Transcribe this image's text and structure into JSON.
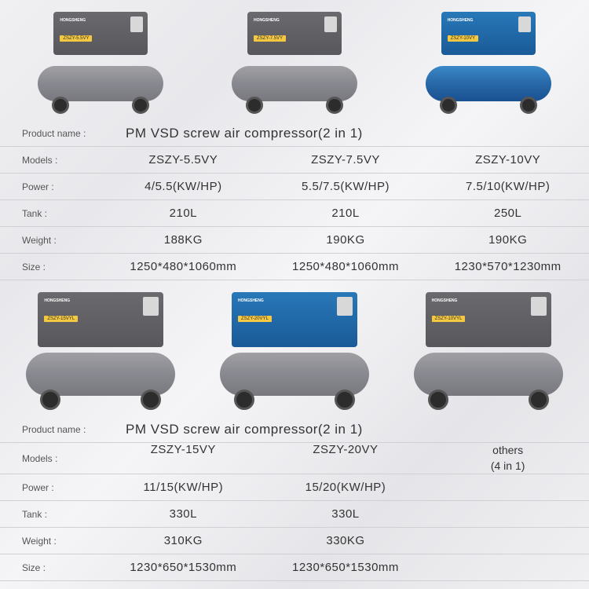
{
  "section1": {
    "product_name_label": "Product name :",
    "product_name": "PM VSD screw air compressor(2 in 1)",
    "labels": {
      "models": "Models :",
      "power": "Power :",
      "tank": "Tank :",
      "weight": "Weight :",
      "size": "Size :"
    },
    "products": [
      {
        "model": "ZSZY-5.5VY",
        "power": "4/5.5(KW/HP)",
        "tank": "210L",
        "weight": "188KG",
        "size": "1250*480*1060mm",
        "color": "gray",
        "badge": "ZSZY-5.5VY"
      },
      {
        "model": "ZSZY-7.5VY",
        "power": "5.5/7.5(KW/HP)",
        "tank": "210L",
        "weight": "190KG",
        "size": "1250*480*1060mm",
        "color": "gray",
        "badge": "ZSZY-7.5VY"
      },
      {
        "model": "ZSZY-10VY",
        "power": "7.5/10(KW/HP)",
        "tank": "250L",
        "weight": "190KG",
        "size": "1230*570*1230mm",
        "color": "blue",
        "badge": "ZSZY-10VY"
      }
    ],
    "brand": "HONGSHENG"
  },
  "section2": {
    "product_name_label": "Product name :",
    "product_name": "PM VSD screw air compressor(2 in 1)",
    "labels": {
      "models": "Models :",
      "power": "Power :",
      "tank": "Tank :",
      "weight": "Weight :",
      "size": "Size :"
    },
    "products": [
      {
        "model": "ZSZY-15VY",
        "power": "11/15(KW/HP)",
        "tank": "330L",
        "weight": "310KG",
        "size": "1230*650*1530mm",
        "color": "gray",
        "badge": "ZSZY-15VYL"
      },
      {
        "model": "ZSZY-20VY",
        "power": "15/20(KW/HP)",
        "tank": "330L",
        "weight": "330KG",
        "size": "1230*650*1530mm",
        "color": "bluetop",
        "badge": "ZSZY-20VYL"
      }
    ],
    "others_label": "others\n(4 in 1)",
    "others_badge": "ZSZY-10VYL",
    "brand": "HONGSHENG"
  },
  "colors": {
    "gray_dark": "#58585c",
    "gray_tank": "#888890",
    "blue_dark": "#1a5a98",
    "blue_tank": "#2868a8",
    "badge_yellow": "#f5c842",
    "border": "#d0d0d4"
  }
}
